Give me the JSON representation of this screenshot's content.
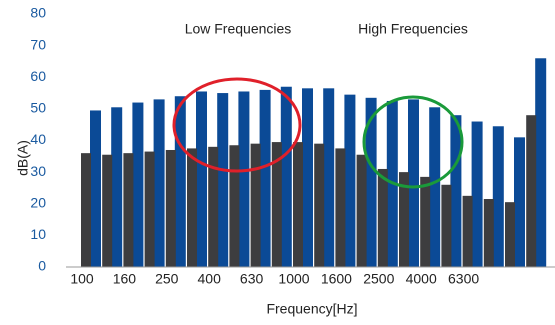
{
  "chart_data": {
    "type": "bar",
    "annotations": [
      "Low Frequencies",
      "High Frequencies"
    ],
    "ylabel": "dB(A)",
    "xlabel": "Frequency[Hz]",
    "categories": [
      "100",
      null,
      "160",
      null,
      "250",
      null,
      "400",
      null,
      "630",
      null,
      "1000",
      null,
      "1600",
      null,
      "2500",
      null,
      "4000",
      null,
      "6300",
      null,
      null,
      null
    ],
    "series": [
      {
        "color": "#0b4a96",
        "values": [
          49.5,
          50.5,
          52,
          53,
          54,
          55.5,
          55,
          55.5,
          56,
          57,
          56.5,
          56.5,
          54.5,
          53.5,
          52.5,
          53,
          50.5,
          48,
          46,
          44.5,
          41,
          66
        ]
      },
      {
        "color": "#3d3d3f",
        "values": [
          36,
          35.5,
          36,
          36.5,
          37,
          37.5,
          38,
          38.5,
          39,
          39.5,
          39.5,
          39,
          37.5,
          35.5,
          31,
          30,
          28.5,
          26,
          22.5,
          21.5,
          20.5,
          48
        ]
      }
    ],
    "ylim": [
      0,
      80
    ],
    "yticks": [
      0,
      10,
      20,
      30,
      40,
      50,
      60,
      70,
      80
    ],
    "grid": false
  }
}
